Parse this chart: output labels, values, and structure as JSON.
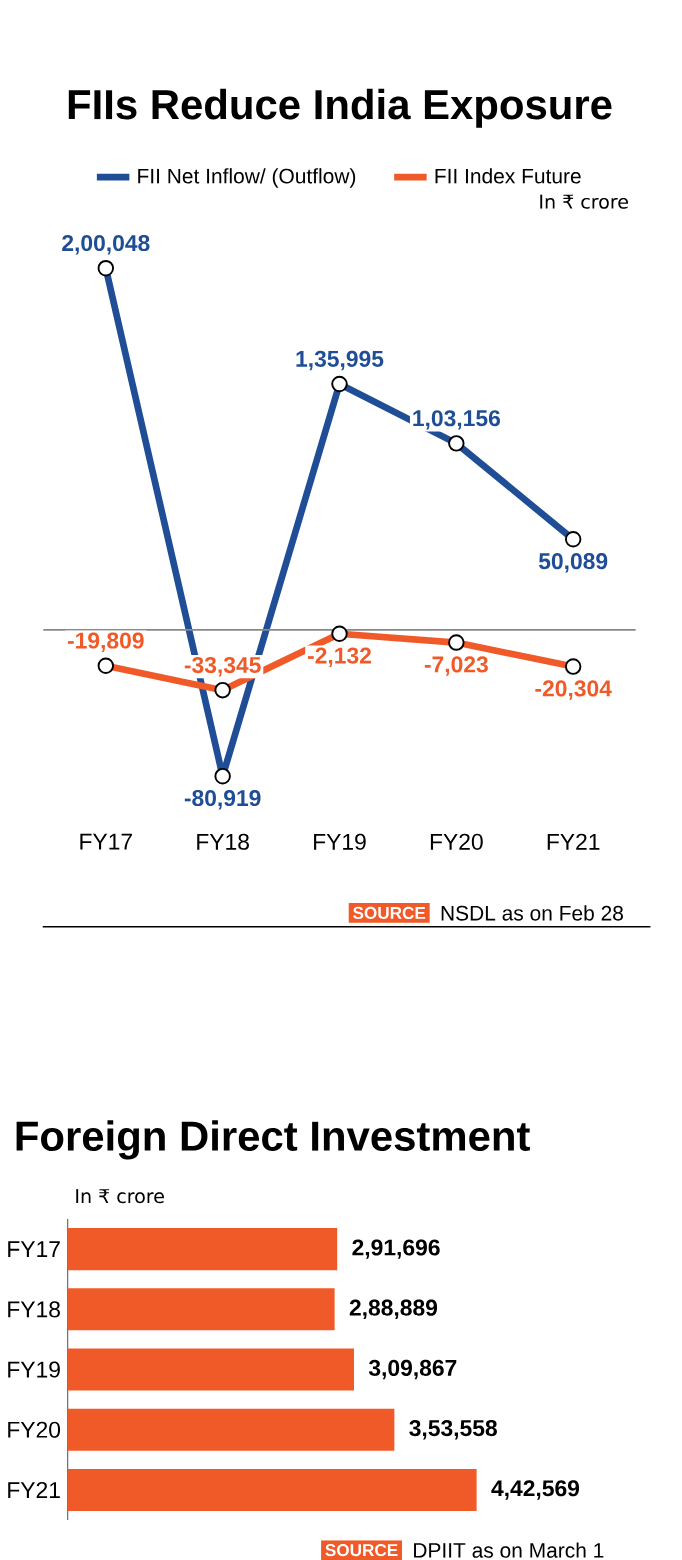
{
  "chart_data": [
    {
      "type": "line",
      "title": "FIIs Reduce India Exposure",
      "categories": [
        "FY17",
        "FY18",
        "FY19",
        "FY20",
        "FY21"
      ],
      "series": [
        {
          "name": "FII Net Inflow/ (Outflow)",
          "color": "#1f4e96",
          "values": [
            200048,
            -80919,
            135995,
            103156,
            50089
          ],
          "value_labels": [
            "2,00,048",
            "-80,919",
            "1,35,995",
            "1,03,156",
            "50,089"
          ]
        },
        {
          "name": "FII Index Future",
          "color": "#f05a28",
          "values": [
            -19809,
            -33345,
            -2132,
            -7023,
            -20304
          ],
          "value_labels": [
            "-19,809",
            "-33,345",
            "-2,132",
            "-7,023",
            "-20,304"
          ]
        }
      ],
      "marker": "circle",
      "legend": "top",
      "ref_lines": [
        {
          "axis": "y",
          "value": 0,
          "color": "#888888"
        }
      ],
      "annotations": [
        "In ₹ crore",
        "SOURCE",
        "NSDL as on Feb 28"
      ]
    },
    {
      "type": "bar",
      "orientation": "horizontal",
      "title": "Foreign Direct Investment",
      "categories": [
        "FY17",
        "FY18",
        "FY19",
        "FY20",
        "FY21"
      ],
      "values": [
        291696,
        288889,
        309867,
        353558,
        442569
      ],
      "color": "#f05a28",
      "value_labels": [
        "2,91,696",
        "2,88,889",
        "3,09,867",
        "3,53,558",
        "4,42,569"
      ],
      "annotations": [
        "In ₹ crore",
        "SOURCE",
        "DPIIT as on March 1"
      ]
    }
  ]
}
